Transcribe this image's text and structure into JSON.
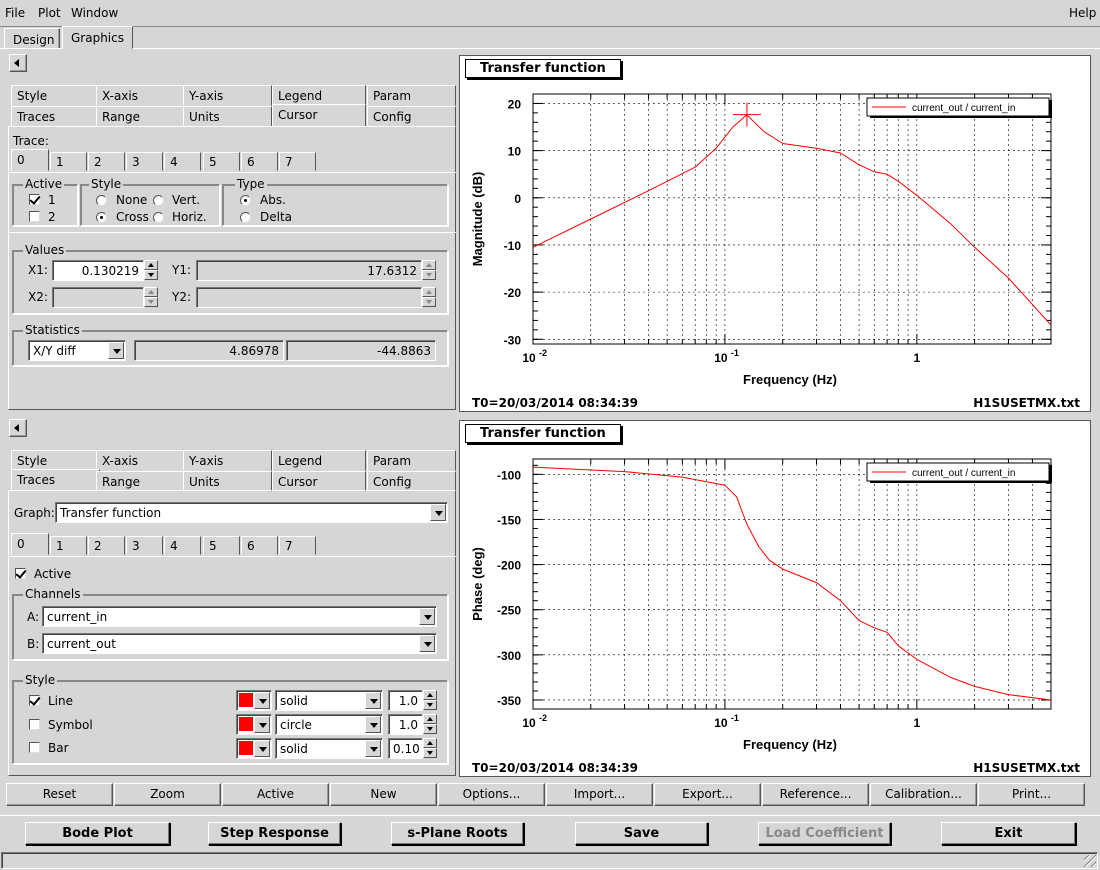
{
  "menu": {
    "file": "File",
    "plot": "Plot",
    "window": "Window",
    "help": "Help"
  },
  "top_tabs": [
    "Design",
    "Graphics"
  ],
  "panel1": {
    "tabs_row1": [
      "Style",
      "X-axis",
      "Y-axis",
      "Legend",
      "Param"
    ],
    "tabs_row2": [
      "Traces",
      "Range",
      "Units",
      "Cursor",
      "Config"
    ],
    "trace_label": "Trace:",
    "trace_tabs": [
      "0",
      "1",
      "2",
      "3",
      "4",
      "5",
      "6",
      "7"
    ],
    "active_label": "Active",
    "active_1": "1",
    "active_2": "2",
    "style_label": "Style",
    "style_none": "None",
    "style_vert": "Vert.",
    "style_cross": "Cross",
    "style_horiz": "Horiz.",
    "type_label": "Type",
    "type_abs": "Abs.",
    "type_delta": "Delta",
    "values_label": "Values",
    "x1_label": "X1:",
    "x1_value": "0.130219",
    "y1_label": "Y1:",
    "y1_value": "17.6312",
    "x2_label": "X2:",
    "y2_label": "Y2:",
    "stats_label": "Statistics",
    "stats_mode": "X/Y diff",
    "stats_val1": "4.86978",
    "stats_val2": "-44.8863"
  },
  "panel2": {
    "tabs_row1": [
      "Style",
      "X-axis",
      "Y-axis",
      "Legend",
      "Param"
    ],
    "tabs_row2": [
      "Traces",
      "Range",
      "Units",
      "Cursor",
      "Config"
    ],
    "graph_label": "Graph:",
    "graph_value": "Transfer function",
    "trace_tabs": [
      "0",
      "1",
      "2",
      "3",
      "4",
      "5",
      "6",
      "7"
    ],
    "active_label": "Active",
    "channels_label": "Channels",
    "a_label": "A:",
    "a_value": "current_in",
    "b_label": "B:",
    "b_value": "current_out",
    "style_label": "Style",
    "line_label": "Line",
    "symbol_label": "Symbol",
    "bar_label": "Bar",
    "line_style": "solid",
    "symbol_style": "circle",
    "bar_style": "solid",
    "line_width": "1.0",
    "symbol_size": "1.0",
    "bar_width": "0.10",
    "color": "#ff0000"
  },
  "plot1": {
    "title": "Transfer function",
    "legend": "current_out / current_in",
    "xlabel": "Frequency (Hz)",
    "ylabel": "Magnitude (dB)",
    "footer_left": "T0=20/03/2014 08:34:39",
    "footer_right": "H1SUSETMX.txt"
  },
  "plot2": {
    "title": "Transfer function",
    "legend": "current_out / current_in",
    "xlabel": "Frequency (Hz)",
    "ylabel": "Phase (deg)",
    "footer_left": "T0=20/03/2014 08:34:39",
    "footer_right": "H1SUSETMX.txt"
  },
  "toolbar": [
    "Reset",
    "Zoom",
    "Active",
    "New",
    "Options...",
    "Import...",
    "Export...",
    "Reference...",
    "Calibration...",
    "Print..."
  ],
  "bottom_buttons": {
    "bode": "Bode Plot",
    "step": "Step Response",
    "splane": "s-Plane Roots",
    "save": "Save",
    "load": "Load Coefficient",
    "exit": "Exit"
  },
  "chart_data": [
    {
      "type": "line",
      "title": "Transfer function",
      "xlabel": "Frequency (Hz)",
      "ylabel": "Magnitude (dB)",
      "xscale": "log",
      "xlim": [
        0.01,
        5
      ],
      "ylim": [
        -31,
        22
      ],
      "xticks": [
        "10^-2",
        "10^-1",
        "1"
      ],
      "yticks": [
        20,
        10,
        0,
        -10,
        -20,
        -30
      ],
      "grid": true,
      "legend_position": "top-right",
      "series": [
        {
          "name": "current_out / current_in",
          "color": "#ff0000",
          "x": [
            0.01,
            0.02,
            0.04,
            0.07,
            0.09,
            0.11,
            0.13,
            0.16,
            0.2,
            0.3,
            0.4,
            0.5,
            0.6,
            0.7,
            0.8,
            1.0,
            1.5,
            2.0,
            3.0,
            5.0
          ],
          "y": [
            -10.5,
            -4.5,
            1.5,
            6.5,
            10.5,
            15.0,
            17.6,
            14.0,
            11.5,
            10.5,
            9.5,
            7.0,
            5.5,
            5.0,
            3.5,
            0.5,
            -5.5,
            -10.5,
            -17.0,
            -27.0
          ]
        }
      ],
      "cursor": {
        "x": 0.130219,
        "y": 17.6312
      }
    },
    {
      "type": "line",
      "title": "Transfer function",
      "xlabel": "Frequency (Hz)",
      "ylabel": "Phase (deg)",
      "xscale": "log",
      "xlim": [
        0.01,
        5
      ],
      "ylim": [
        -360,
        -83
      ],
      "xticks": [
        "10^-2",
        "10^-1",
        "1"
      ],
      "yticks": [
        -100,
        -150,
        -200,
        -250,
        -300,
        -350
      ],
      "grid": true,
      "legend_position": "top-right",
      "series": [
        {
          "name": "current_out / current_in",
          "color": "#ff0000",
          "x": [
            0.01,
            0.03,
            0.06,
            0.1,
            0.115,
            0.13,
            0.15,
            0.17,
            0.2,
            0.3,
            0.4,
            0.5,
            0.6,
            0.7,
            0.8,
            1.0,
            1.5,
            2.0,
            3.0,
            5.0
          ],
          "y": [
            -92,
            -97,
            -103,
            -112,
            -125,
            -155,
            -180,
            -195,
            -205,
            -220,
            -240,
            -262,
            -270,
            -275,
            -290,
            -305,
            -325,
            -335,
            -344,
            -350
          ]
        }
      ]
    }
  ]
}
